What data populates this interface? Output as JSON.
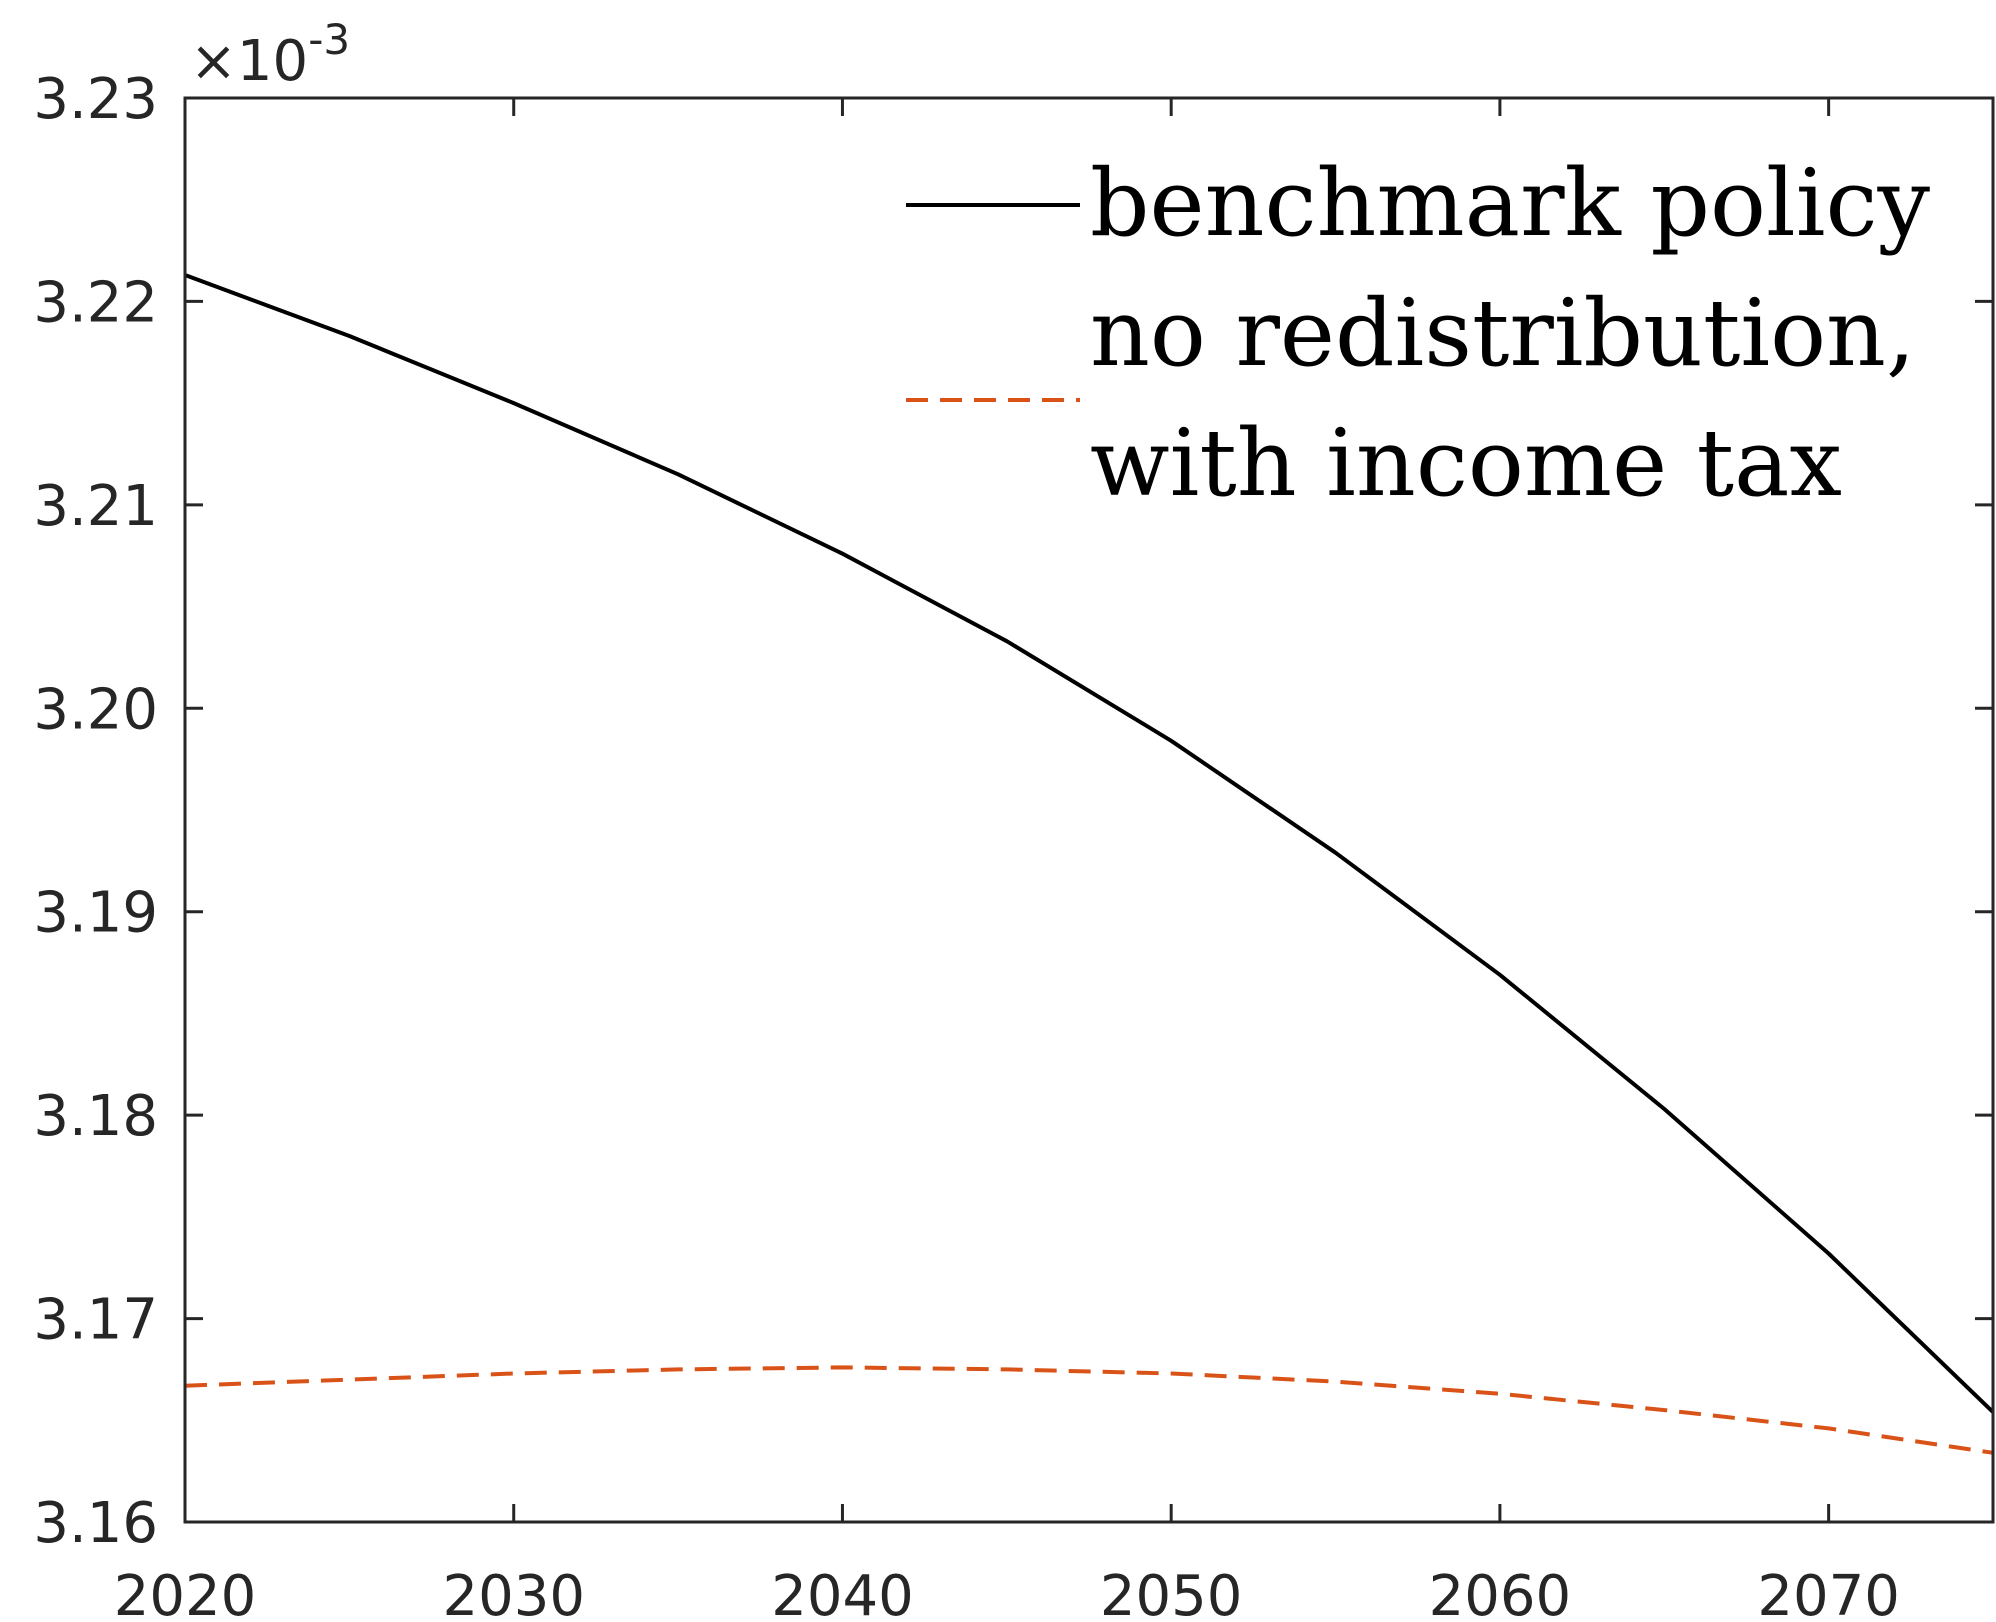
{
  "chart_data": {
    "type": "line",
    "title": "",
    "xlabel": "",
    "ylabel": "",
    "y_exponent": "×10",
    "y_exponent_power": "-3",
    "xlim": [
      2020,
      2075
    ],
    "ylim": [
      3.16,
      3.23
    ],
    "x_ticks": [
      2020,
      2030,
      2040,
      2050,
      2060,
      2070
    ],
    "x_tick_labels": [
      "2020",
      "2030",
      "2040",
      "2050",
      "2060",
      "2070"
    ],
    "y_ticks": [
      3.16,
      3.17,
      3.18,
      3.19,
      3.2,
      3.21,
      3.22,
      3.23
    ],
    "y_tick_labels": [
      "3.16",
      "3.17",
      "3.18",
      "3.19",
      "3.20",
      "3.21",
      "3.22",
      "3.23"
    ],
    "grid": false,
    "legend_position": "top-right",
    "x": [
      2020,
      2025,
      2030,
      2035,
      2040,
      2045,
      2050,
      2055,
      2060,
      2065,
      2070,
      2075
    ],
    "series": [
      {
        "name": "benchmark policy",
        "color": "#000000",
        "style": "solid",
        "values": [
          3.2213,
          3.2183,
          3.215,
          3.2115,
          3.2076,
          3.2033,
          3.1984,
          3.1929,
          3.1869,
          3.1803,
          3.1732,
          3.1654
        ]
      },
      {
        "name": "no redistribution, with income tax",
        "name_lines": [
          "no redistribution,",
          "with income tax"
        ],
        "color": "#D95319",
        "style": "dashed",
        "values": [
          3.1667,
          3.167,
          3.1673,
          3.1675,
          3.1676,
          3.1675,
          3.1673,
          3.1669,
          3.1663,
          3.1655,
          3.1646,
          3.1634
        ]
      }
    ]
  }
}
